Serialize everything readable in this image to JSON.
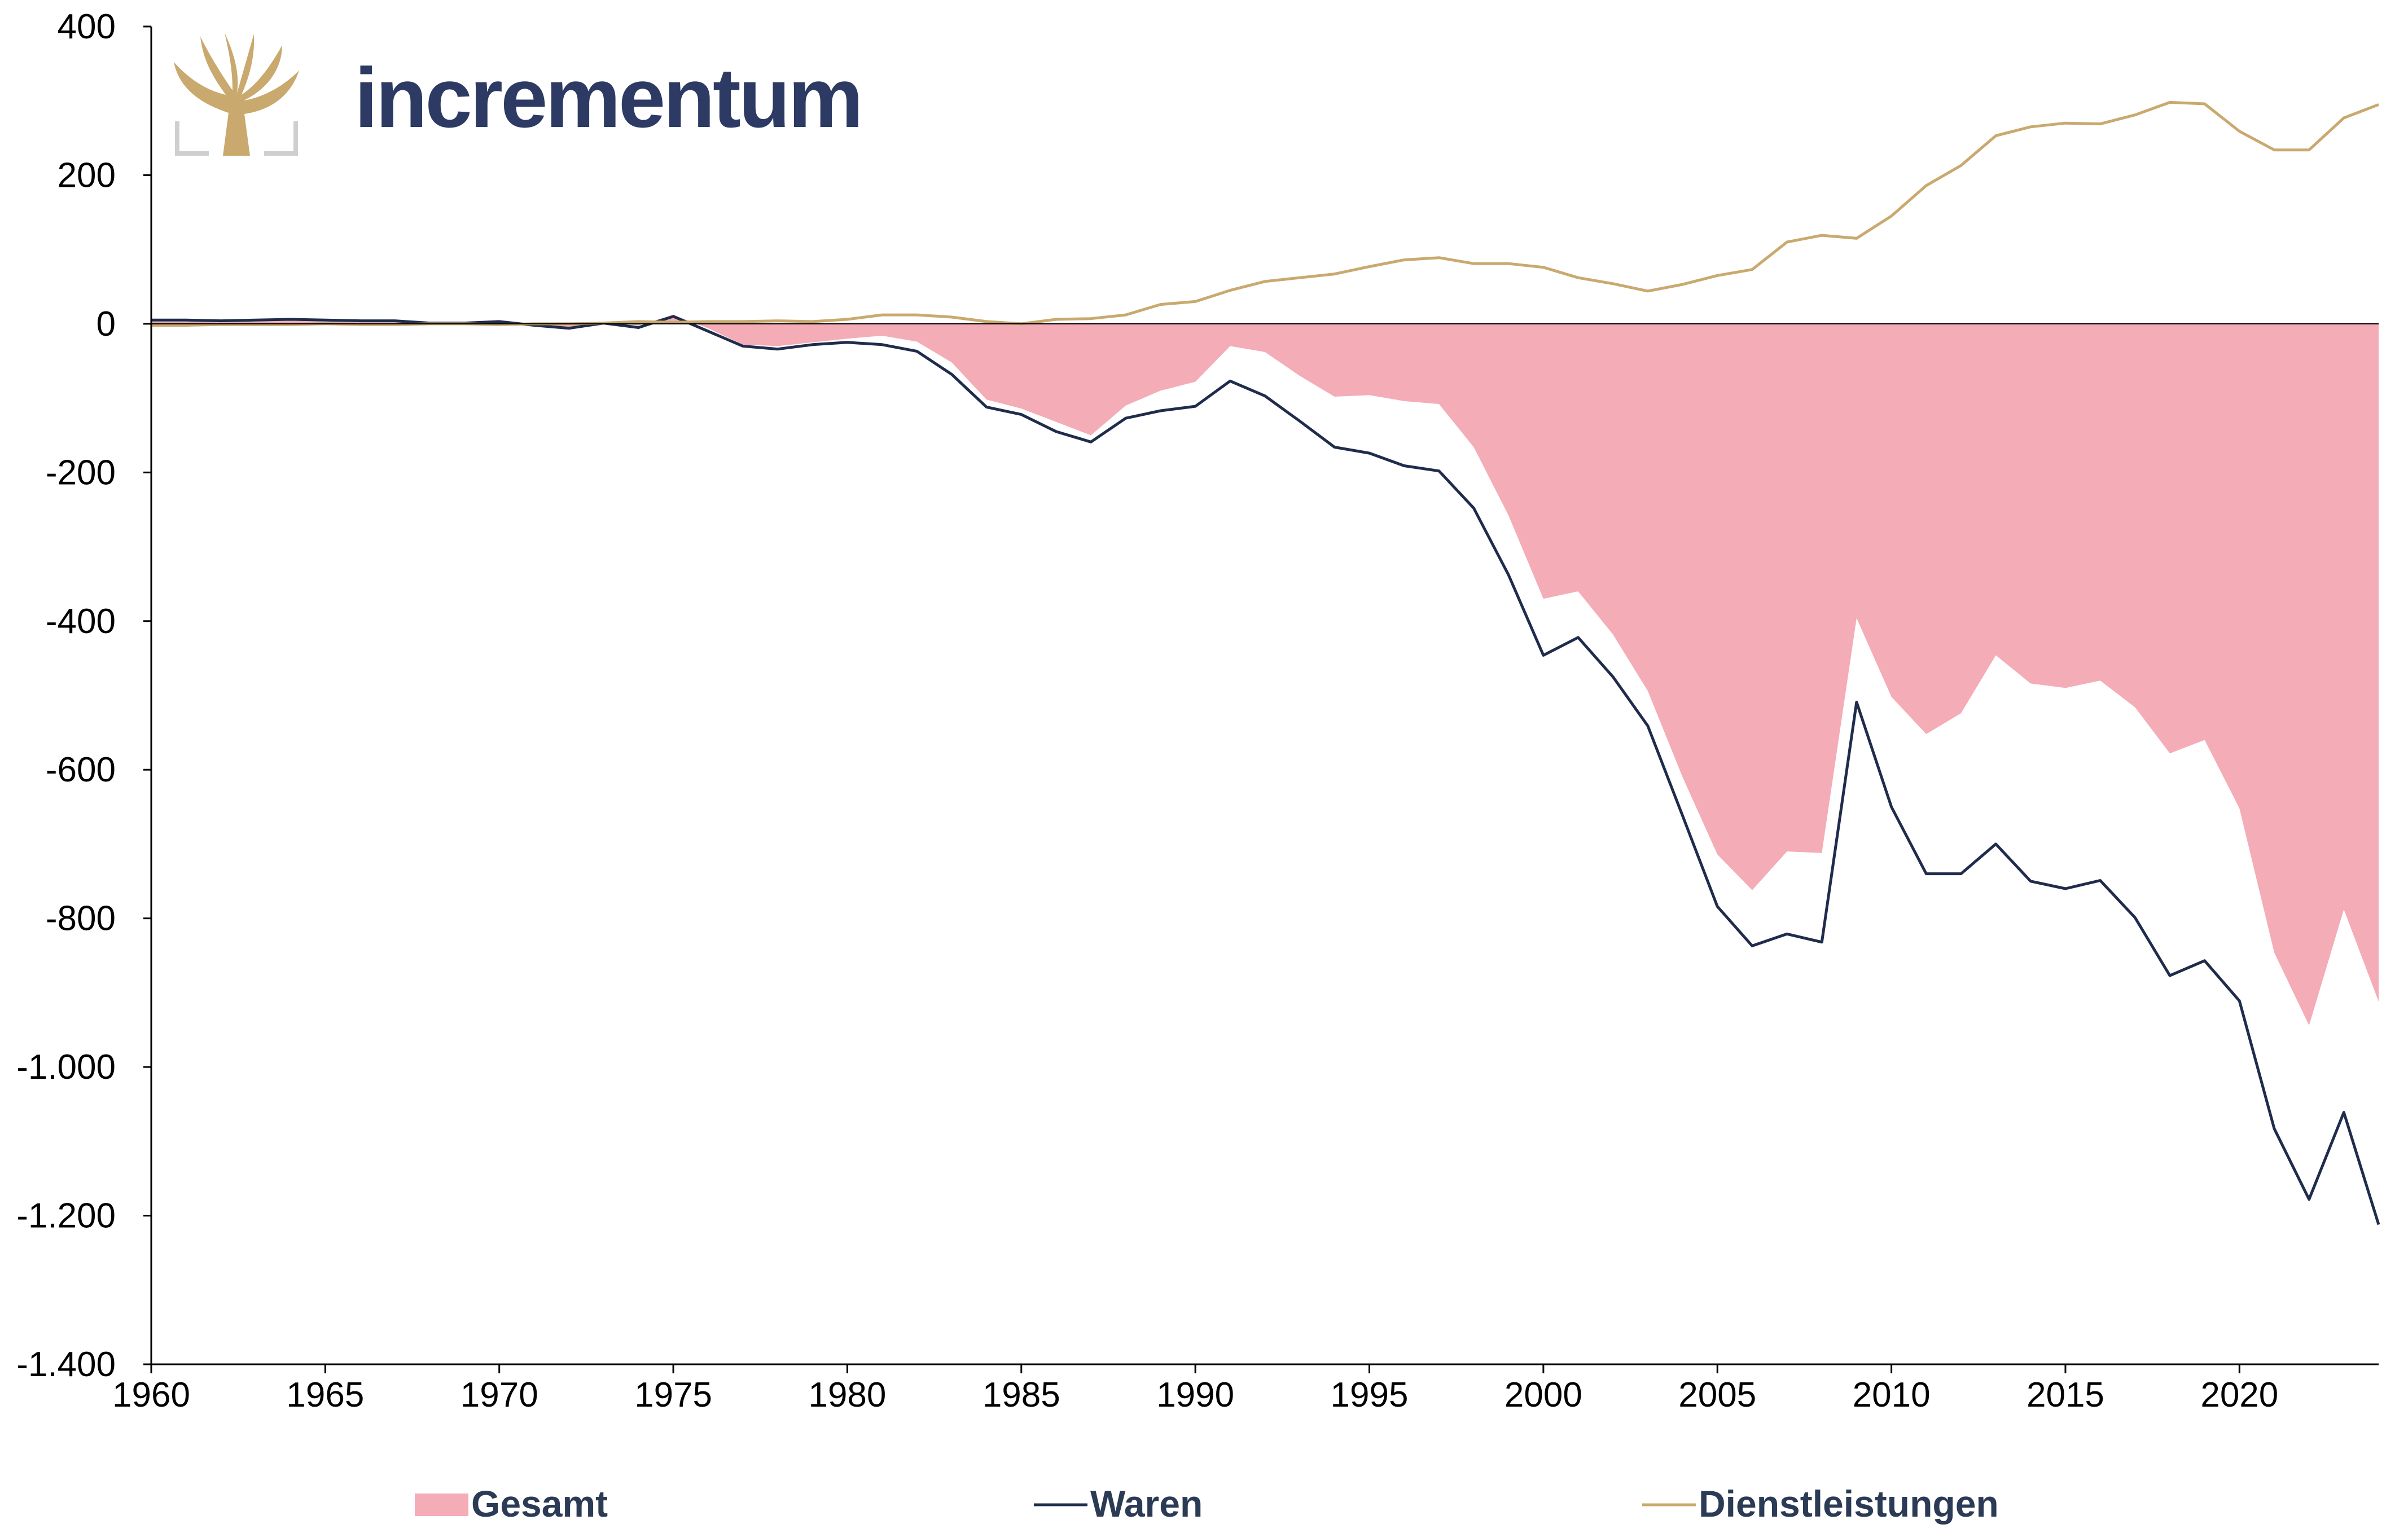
{
  "logo": {
    "text": "incrementum",
    "icon": "tree-icon"
  },
  "colors": {
    "gesamt": "#f4acb7",
    "waren": "#1f2c4c",
    "dienstleistungen": "#c9a96e",
    "axis": "#000000"
  },
  "chart_data": {
    "type": "area",
    "title": "",
    "xlabel": "",
    "ylabel": "",
    "xlim": [
      1960,
      2024
    ],
    "ylim": [
      -1400,
      400
    ],
    "y_ticks": [
      400,
      200,
      0,
      -200,
      -400,
      -600,
      -800,
      -1000,
      -1200,
      -1400
    ],
    "y_tick_labels": [
      "400",
      "200",
      "0",
      "-200",
      "-400",
      "-600",
      "-800",
      "-1.000",
      "-1.200",
      "-1.400"
    ],
    "x_ticks": [
      1960,
      1965,
      1970,
      1975,
      1980,
      1985,
      1990,
      1995,
      2000,
      2005,
      2010,
      2015,
      2020
    ],
    "x_tick_labels": [
      "1960",
      "1965",
      "1970",
      "1975",
      "1980",
      "1985",
      "1990",
      "1995",
      "2000",
      "2005",
      "2010",
      "2015",
      "2020"
    ],
    "legend_position": "bottom",
    "x": [
      1960,
      1961,
      1962,
      1963,
      1964,
      1965,
      1966,
      1967,
      1968,
      1969,
      1970,
      1971,
      1972,
      1973,
      1974,
      1975,
      1976,
      1977,
      1978,
      1979,
      1980,
      1981,
      1982,
      1983,
      1984,
      1985,
      1986,
      1987,
      1988,
      1989,
      1990,
      1991,
      1992,
      1993,
      1994,
      1995,
      1996,
      1997,
      1998,
      1999,
      2000,
      2001,
      2002,
      2003,
      2004,
      2005,
      2006,
      2007,
      2008,
      2009,
      2010,
      2011,
      2012,
      2013,
      2014,
      2015,
      2016,
      2017,
      2018,
      2019,
      2020,
      2021,
      2022,
      2023,
      2024
    ],
    "series": [
      {
        "name": "Gesamt",
        "type": "area",
        "values": [
          3,
          3,
          2,
          3,
          4,
          3,
          2,
          2,
          0,
          0,
          2,
          -1,
          -6,
          1,
          -2,
          12,
          -6,
          -28,
          -30,
          -25,
          -20,
          -16,
          -24,
          -52,
          -102,
          -114,
          -132,
          -150,
          -110,
          -90,
          -78,
          -30,
          -38,
          -70,
          -98,
          -96,
          -104,
          -108,
          -166,
          -258,
          -370,
          -360,
          -418,
          -494,
          -610,
          -714,
          -762,
          -710,
          -712,
          -396,
          -502,
          -552,
          -524,
          -446,
          -484,
          -490,
          -480,
          -516,
          -578,
          -560,
          -652,
          -846,
          -944,
          -788,
          -912
        ]
      },
      {
        "name": "Waren",
        "type": "line",
        "values": [
          5,
          5,
          4,
          5,
          6,
          5,
          4,
          4,
          1,
          1,
          3,
          -2,
          -6,
          1,
          -5,
          10,
          -10,
          -30,
          -34,
          -28,
          -25,
          -28,
          -37,
          -68,
          -112,
          -122,
          -145,
          -159,
          -127,
          -117,
          -111,
          -77,
          -97,
          -131,
          -166,
          -174,
          -191,
          -198,
          -248,
          -338,
          -446,
          -422,
          -475,
          -541,
          -662,
          -784,
          -837,
          -821,
          -832,
          -509,
          -650,
          -740,
          -740,
          -700,
          -750,
          -760,
          -749,
          -799,
          -877,
          -857,
          -911,
          -1083,
          -1178,
          -1061,
          -1212
        ]
      },
      {
        "name": "Dienstleistungen",
        "type": "line",
        "values": [
          -2,
          -2,
          -1,
          -1,
          -1,
          0,
          -1,
          -1,
          0,
          0,
          -1,
          0,
          0,
          1,
          3,
          2,
          3,
          3,
          4,
          3,
          6,
          12,
          12,
          9,
          3,
          0,
          6,
          7,
          12,
          26,
          30,
          45,
          57,
          62,
          67,
          77,
          86,
          89,
          81,
          81,
          76,
          62,
          54,
          44,
          53,
          65,
          73,
          110,
          119,
          115,
          145,
          186,
          213,
          253,
          265,
          270,
          269,
          281,
          298,
          296,
          259,
          234,
          234,
          277,
          295
        ]
      }
    ]
  }
}
